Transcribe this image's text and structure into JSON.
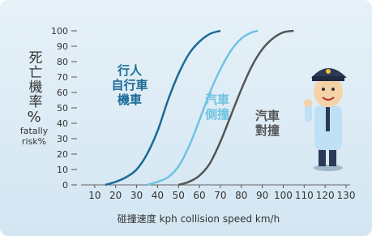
{
  "chart_data": {
    "type": "line",
    "y_label": "死亡機率",
    "y_unit": "%",
    "y_label_en": "fatally risk%",
    "x_label": "碰撞速度 kph collision speed km/h",
    "xlim": [
      0,
      130
    ],
    "xticks": [
      10,
      20,
      30,
      40,
      50,
      60,
      70,
      80,
      90,
      100,
      110,
      120,
      130
    ],
    "ylim": [
      0,
      100
    ],
    "yticks": [
      0,
      10,
      20,
      30,
      40,
      50,
      60,
      70,
      80,
      90,
      100
    ],
    "series": [
      {
        "label_lines": [
          "行人",
          "自行車",
          "機車"
        ],
        "color": "#1d6a97",
        "x": [
          15,
          20,
          25,
          30,
          35,
          40,
          45,
          50,
          55,
          60,
          65,
          70
        ],
        "values": [
          0,
          2,
          5,
          10,
          20,
          35,
          55,
          72,
          85,
          93,
          98,
          100
        ]
      },
      {
        "label_lines": [
          "汽車",
          "側撞"
        ],
        "color": "#6fc2e2",
        "x": [
          35,
          40,
          45,
          50,
          55,
          60,
          65,
          70,
          75,
          80,
          85,
          88
        ],
        "values": [
          0,
          2,
          5,
          12,
          25,
          42,
          60,
          75,
          87,
          95,
          99,
          100
        ]
      },
      {
        "label_lines": [
          "汽車",
          "對撞"
        ],
        "color": "#555555",
        "x": [
          50,
          55,
          60,
          65,
          70,
          75,
          80,
          85,
          90,
          95,
          100,
          105
        ],
        "values": [
          0,
          2,
          6,
          14,
          28,
          45,
          62,
          77,
          88,
          95,
          99,
          100
        ]
      }
    ]
  }
}
